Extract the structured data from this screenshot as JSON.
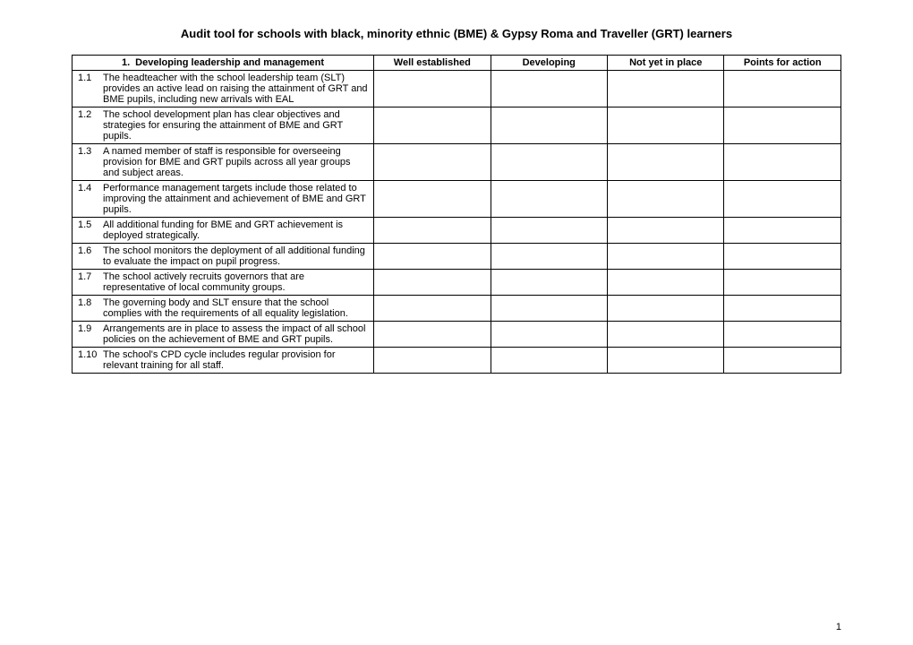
{
  "document": {
    "title": "Audit tool for schools with black, minority ethnic (BME) & Gypsy Roma and Traveller (GRT) learners",
    "page_number": "1"
  },
  "table": {
    "header": {
      "section_number": "1.",
      "section_title": "Developing leadership and management",
      "col_well_established": "Well established",
      "col_developing": "Developing",
      "col_not_yet": "Not yet in place",
      "col_points": "Points for action"
    },
    "rows": [
      {
        "num": "1.1",
        "text": "The headteacher with the school leadership team (SLT) provides an active lead on raising the attainment of GRT and BME pupils, including new arrivals with EAL"
      },
      {
        "num": "1.2",
        "text": "The school development plan has clear objectives and strategies for ensuring the attainment of BME and GRT pupils."
      },
      {
        "num": "1.3",
        "text": "A named member of staff is responsible for overseeing provision for BME and GRT pupils across all year groups and subject areas."
      },
      {
        "num": "1.4",
        "text": "Performance management targets include those related to improving the attainment and achievement of BME and GRT pupils."
      },
      {
        "num": "1.5",
        "text": "All additional funding for BME and GRT achievement is deployed strategically."
      },
      {
        "num": "1.6",
        "text": "The school monitors the deployment of all additional funding to evaluate the impact on pupil progress."
      },
      {
        "num": "1.7",
        "text": "The school actively recruits governors that are representative of local community groups."
      },
      {
        "num": "1.8",
        "text": "The governing body and SLT ensure that the school complies with the requirements of all equality legislation."
      },
      {
        "num": "1.9",
        "text": "Arrangements are in place to assess the impact of all school policies on the achievement of BME and GRT pupils."
      },
      {
        "num": "1.10",
        "text": "The school's CPD cycle includes regular provision for relevant training for all staff."
      }
    ]
  }
}
